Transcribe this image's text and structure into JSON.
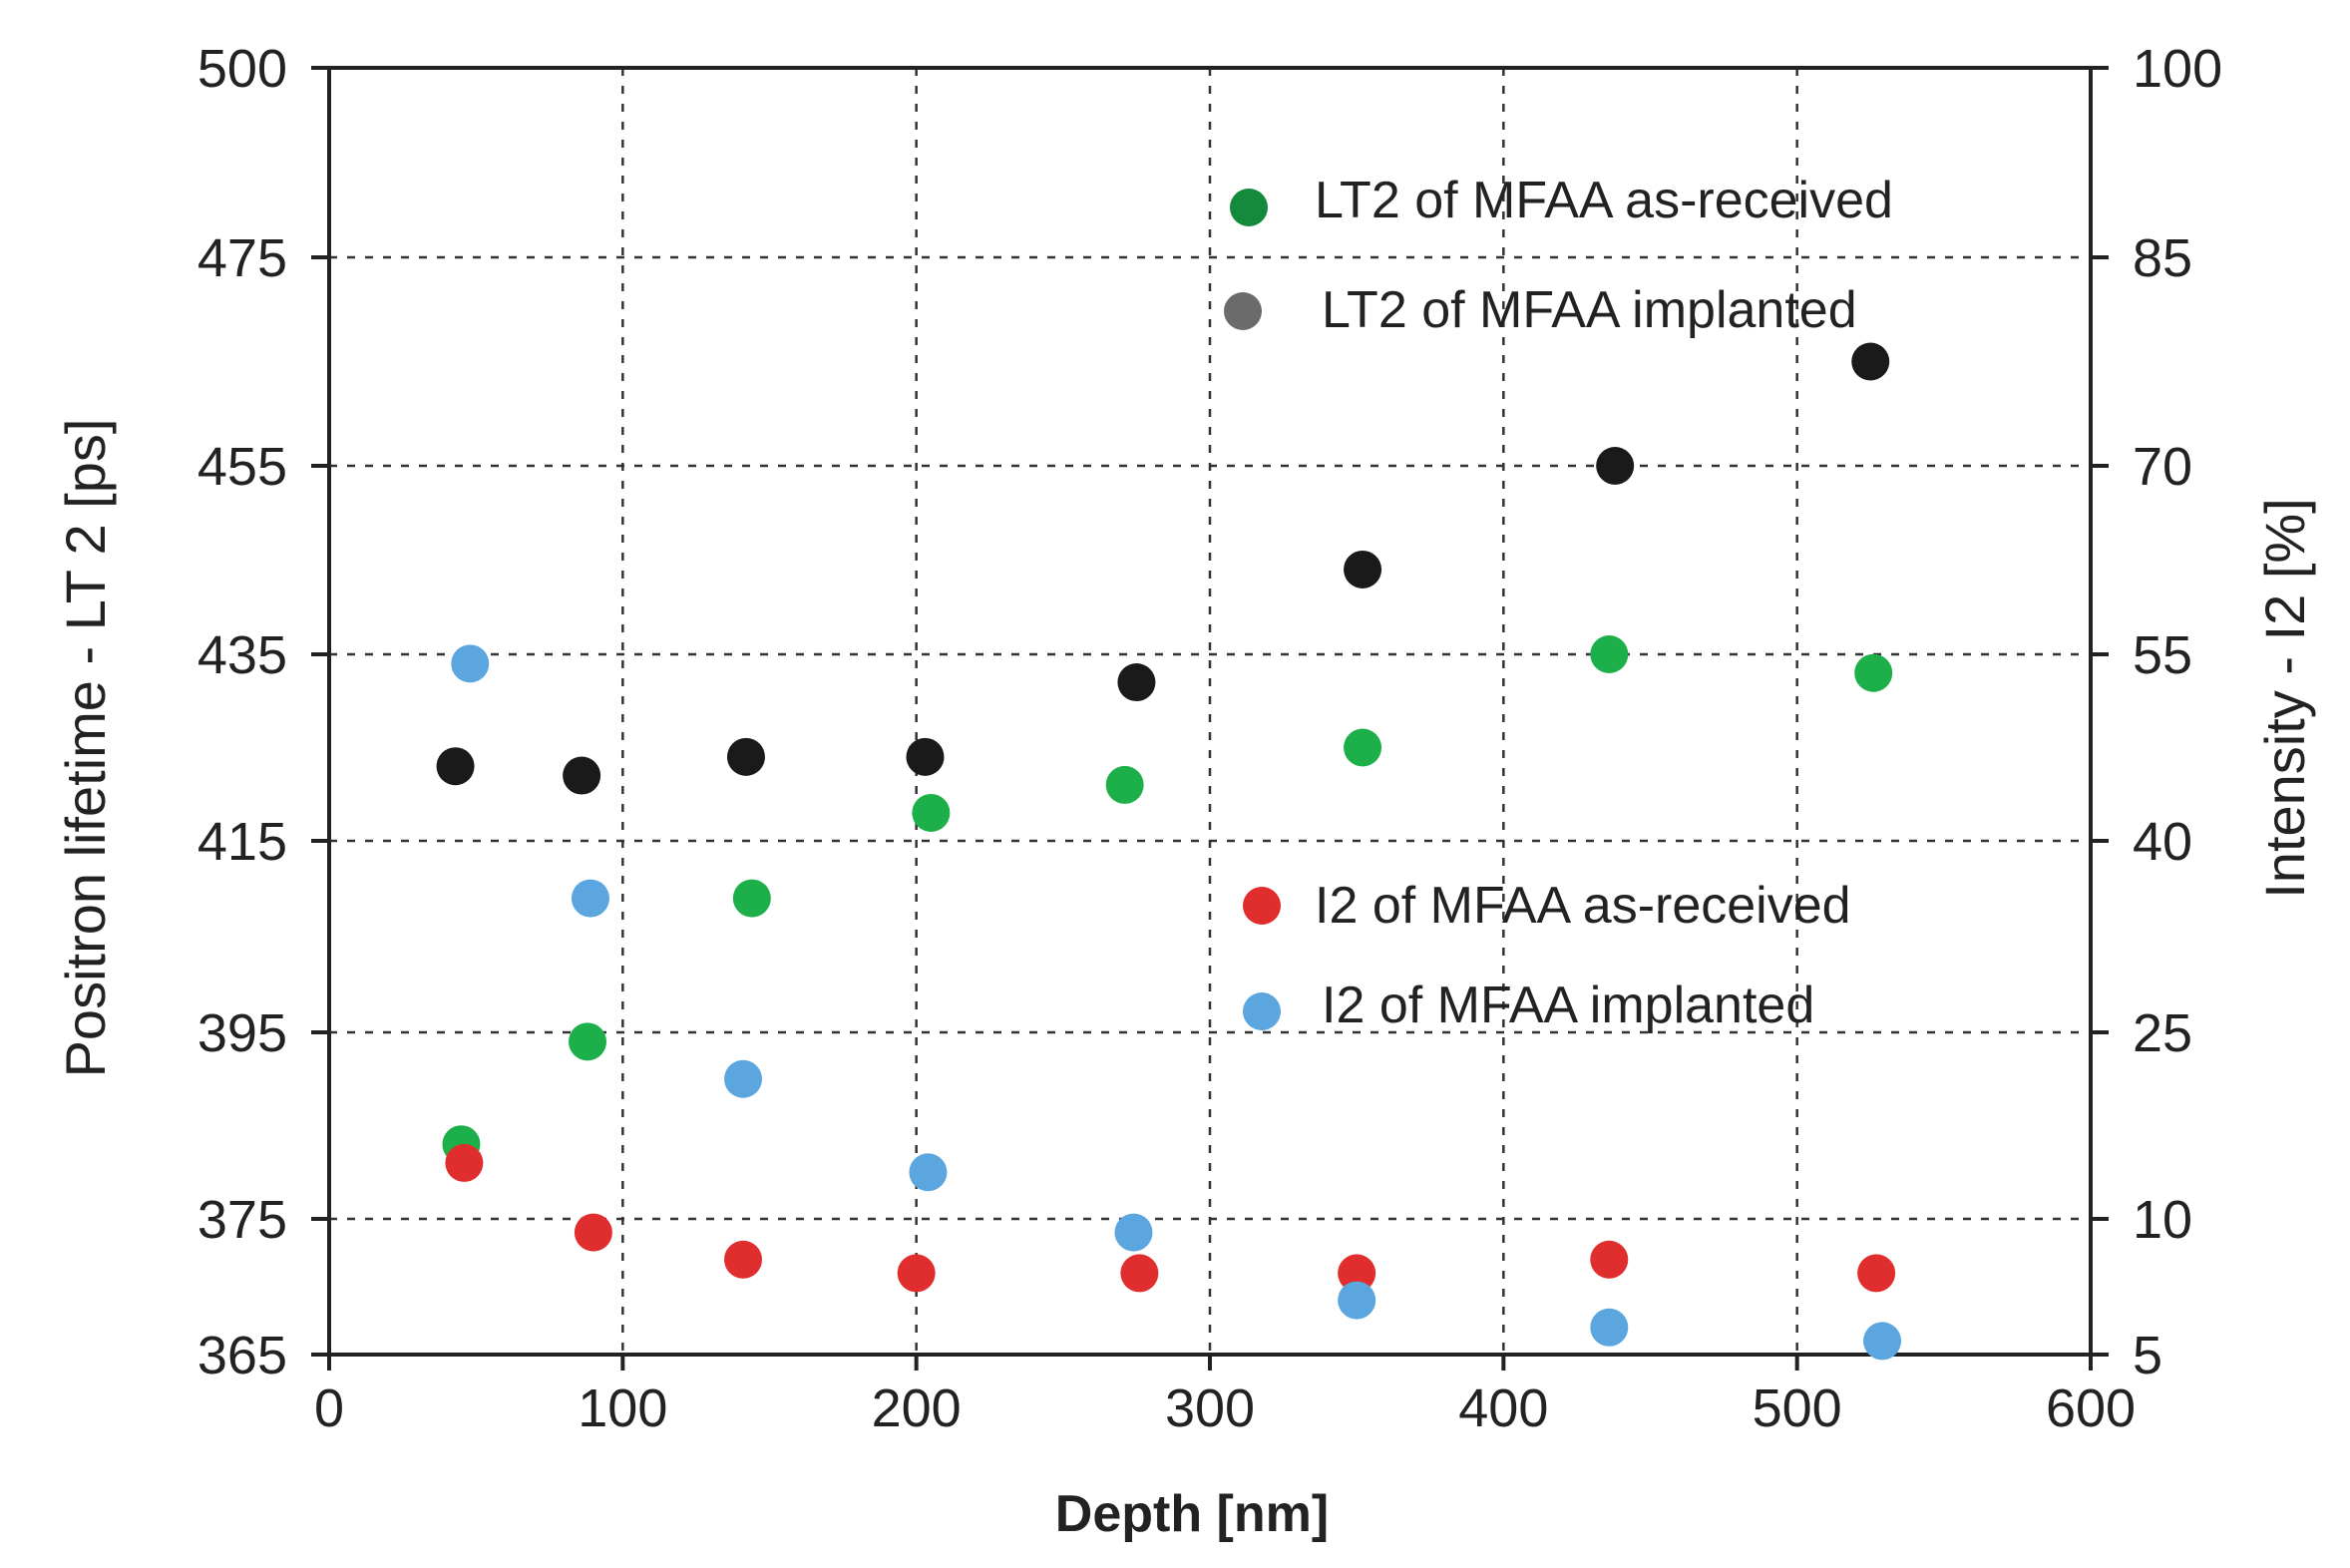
{
  "chart_data": {
    "type": "scatter",
    "xlabel": "Depth [nm]",
    "ylabel_left": "Positron lifetime - LT 2 [ps]",
    "ylabel_right": "Intensity - I2 [%]",
    "xlim": [
      0,
      600
    ],
    "ylim_left": [
      365,
      500
    ],
    "x_ticks": [
      "0",
      "100",
      "200",
      "300",
      "400",
      "500",
      "600"
    ],
    "left_ticks": [
      "500",
      "475",
      "455",
      "435",
      "415",
      "395",
      "375",
      "365"
    ],
    "right_ticks": [
      "100",
      "85",
      "70",
      "55",
      "40",
      "25",
      "10",
      "5"
    ],
    "grid": true,
    "series": [
      {
        "name": "LT2 of MFAA as-received",
        "axis": "left",
        "color": "#1db04a",
        "legend_color": "#138a3c",
        "x": [
          45,
          88,
          144,
          205,
          271,
          352,
          436,
          526
        ],
        "y": [
          383,
          394,
          409,
          418,
          421,
          425,
          435,
          433
        ]
      },
      {
        "name": "LT2 of MFAA implanted",
        "axis": "left",
        "color": "#1a1a1a",
        "legend_color": "#6b6b6b",
        "x": [
          43,
          86,
          142,
          203,
          275,
          352,
          438,
          525
        ],
        "y": [
          423,
          422,
          424,
          424,
          432,
          444,
          455,
          465
        ]
      },
      {
        "name": "I2 of MFAA as-received",
        "axis": "right",
        "color": "#e02e2e",
        "legend_color": "#e02e2e",
        "x": [
          46,
          90,
          141,
          200,
          276,
          350,
          436,
          527
        ],
        "y": [
          381,
          374,
          372,
          371,
          371,
          371,
          372,
          371
        ]
      },
      {
        "name": "I2 of MFAA implanted",
        "axis": "right",
        "color": "#5ba6de",
        "legend_color": "#5ba6de",
        "x": [
          48,
          89,
          141,
          204,
          274,
          350,
          436,
          529
        ],
        "y": [
          434,
          409,
          390,
          380,
          374,
          369,
          367,
          366
        ]
      }
    ]
  }
}
